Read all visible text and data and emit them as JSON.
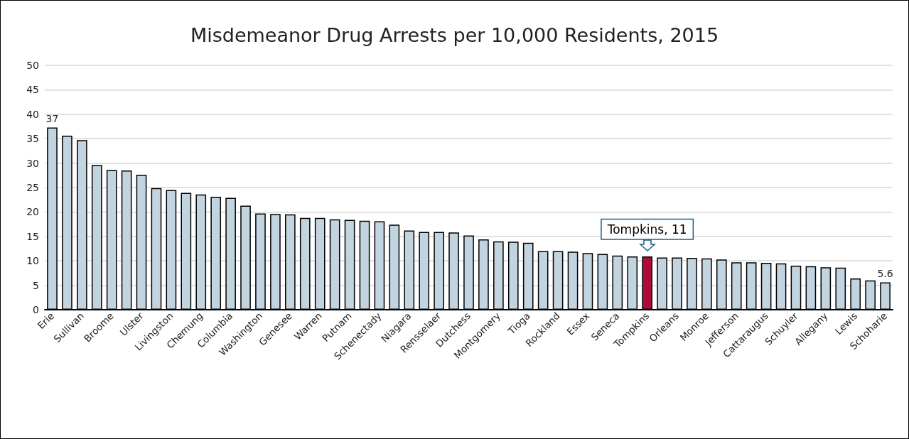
{
  "chart_data": {
    "type": "bar",
    "title": "Misdemeanor Drug Arrests per 10,000 Residents, 2015",
    "categories": [
      "Erie",
      null,
      "Sullivan",
      null,
      "Broome",
      null,
      "Ulster",
      null,
      "Livingston",
      null,
      "Chemung",
      null,
      "Columbia",
      null,
      "Washington",
      null,
      "Genesee",
      null,
      "Warren",
      null,
      "Putnam",
      null,
      "Schenectady",
      null,
      "Niagara",
      null,
      "Rensselaer",
      null,
      "Dutchess",
      null,
      "Montgomery",
      null,
      "Tioga",
      null,
      "Rockland",
      null,
      "Essex",
      null,
      "Seneca",
      null,
      "Tompkins",
      null,
      "Orleans",
      null,
      "Monroe",
      null,
      "Jefferson",
      null,
      "Cattaraugus",
      null,
      "Schuyler",
      null,
      "Allegany",
      null,
      "Lewis",
      null,
      "Schoharie"
    ],
    "values": [
      37.3,
      35.6,
      34.7,
      29.6,
      28.6,
      28.5,
      27.6,
      24.9,
      24.5,
      23.9,
      23.6,
      23.1,
      22.9,
      21.3,
      19.7,
      19.6,
      19.5,
      18.8,
      18.8,
      18.5,
      18.4,
      18.2,
      18.1,
      17.4,
      16.2,
      15.9,
      15.9,
      15.8,
      15.2,
      14.4,
      14.0,
      13.9,
      13.7,
      12.0,
      12.0,
      11.9,
      11.6,
      11.4,
      11.1,
      10.9,
      10.9,
      10.7,
      10.7,
      10.6,
      10.5,
      10.3,
      9.7,
      9.7,
      9.6,
      9.5,
      9.0,
      8.9,
      8.7,
      8.6,
      6.4,
      6.0,
      5.6
    ],
    "colors": [
      "#c3d4e1",
      "#c3d4e1",
      "#c3d4e1",
      "#c3d4e1",
      "#c3d4e1",
      "#c3d4e1",
      "#c3d4e1",
      "#c3d4e1",
      "#c3d4e1",
      "#c3d4e1",
      "#c3d4e1",
      "#c3d4e1",
      "#c3d4e1",
      "#c3d4e1",
      "#c3d4e1",
      "#c3d4e1",
      "#c3d4e1",
      "#c3d4e1",
      "#c3d4e1",
      "#c3d4e1",
      "#c3d4e1",
      "#c3d4e1",
      "#c3d4e1",
      "#c3d4e1",
      "#c3d4e1",
      "#c3d4e1",
      "#c3d4e1",
      "#c3d4e1",
      "#c3d4e1",
      "#c3d4e1",
      "#c3d4e1",
      "#c3d4e1",
      "#c3d4e1",
      "#c3d4e1",
      "#c3d4e1",
      "#c3d4e1",
      "#c3d4e1",
      "#c3d4e1",
      "#c3d4e1",
      "#c3d4e1",
      "#b00a3a",
      "#c3d4e1",
      "#c3d4e1",
      "#c3d4e1",
      "#c3d4e1",
      "#c3d4e1",
      "#c3d4e1",
      "#c3d4e1",
      "#c3d4e1",
      "#c3d4e1",
      "#c3d4e1",
      "#c3d4e1",
      "#c3d4e1",
      "#c3d4e1",
      "#c3d4e1",
      "#c3d4e1",
      "#c3d4e1"
    ],
    "value_labels": [
      "37",
      null,
      null,
      null,
      null,
      null,
      null,
      null,
      null,
      null,
      null,
      null,
      null,
      null,
      null,
      null,
      null,
      null,
      null,
      null,
      null,
      null,
      null,
      null,
      null,
      null,
      null,
      null,
      null,
      null,
      null,
      null,
      null,
      null,
      null,
      null,
      null,
      null,
      null,
      null,
      null,
      null,
      null,
      null,
      null,
      null,
      null,
      null,
      null,
      null,
      null,
      null,
      null,
      null,
      null,
      null,
      "5.6"
    ],
    "annotations": [
      {
        "text": "Tompkins, 11",
        "x": "Tompkins",
        "y": 11
      }
    ],
    "ylim": [
      0,
      50
    ],
    "yticks": [
      0,
      5,
      10,
      15,
      20,
      25,
      30,
      35,
      40,
      45,
      50
    ],
    "grid": "y"
  }
}
